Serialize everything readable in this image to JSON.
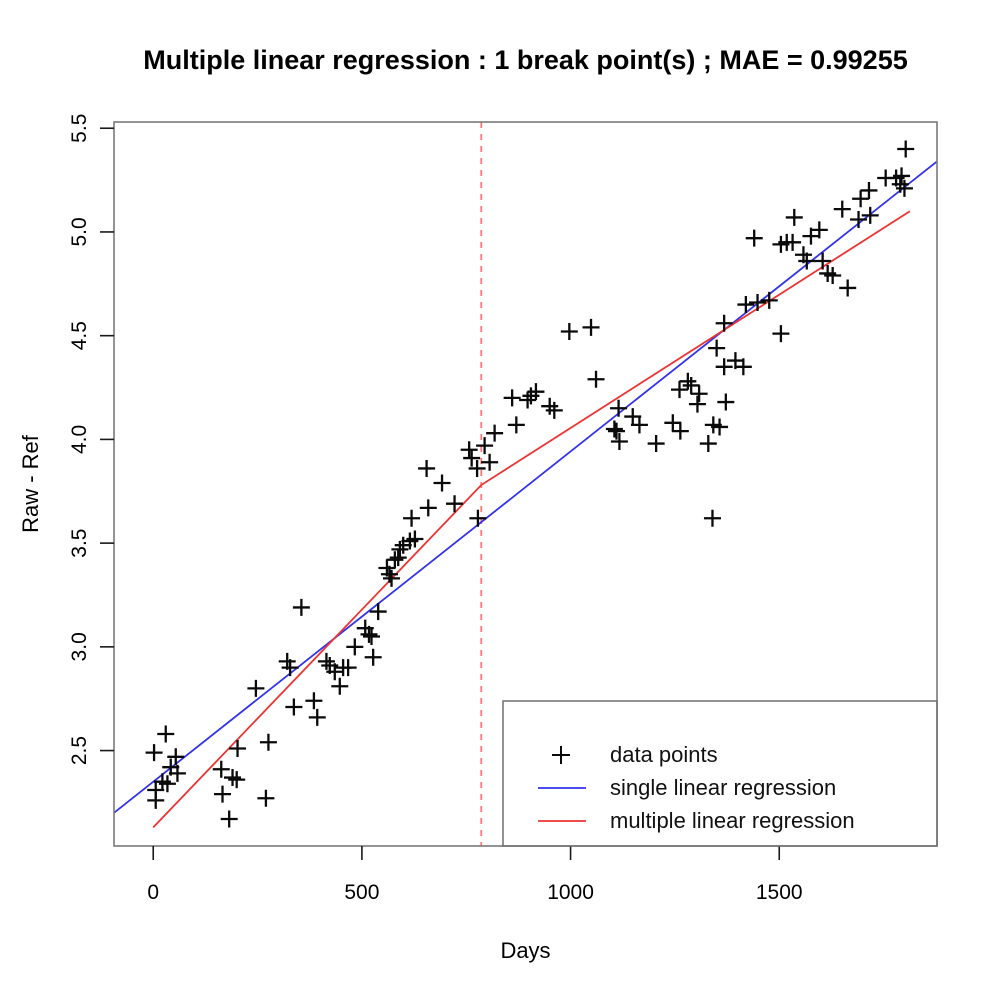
{
  "chart_data": {
    "type": "scatter",
    "title": "Multiple linear regression : 1 break point(s) ; MAE = 0.99255",
    "xlabel": "Days",
    "ylabel": "Raw - Ref",
    "xlim": [
      -94,
      1878
    ],
    "ylim": [
      2.04,
      5.53
    ],
    "x_ticks": [
      0,
      500,
      1000,
      1500
    ],
    "y_ticks": [
      "2.5",
      "3.0",
      "3.5",
      "4.0",
      "4.5",
      "5.0",
      "5.5"
    ],
    "grid": false,
    "legend_position": "bottom-right",
    "colors": {
      "points": "#0a0a0a",
      "single_regression": "#3333ee",
      "multiple_regression": "#ee3333",
      "break_line": "#f97b7b",
      "box": "#7a7a7a",
      "tick": "#1a1a1a"
    },
    "series": [
      {
        "name": "data points",
        "kind": "scatter",
        "marker": "plus",
        "color": "#0a0a0a",
        "points": [
          [
            2,
            2.49
          ],
          [
            6,
            2.31
          ],
          [
            6,
            2.26
          ],
          [
            22,
            2.35
          ],
          [
            30,
            2.58
          ],
          [
            34,
            2.34
          ],
          [
            42,
            2.42
          ],
          [
            54,
            2.47
          ],
          [
            58,
            2.39
          ],
          [
            163,
            2.41
          ],
          [
            166,
            2.29
          ],
          [
            182,
            2.17
          ],
          [
            190,
            2.37
          ],
          [
            200,
            2.36
          ],
          [
            202,
            2.51
          ],
          [
            246,
            2.8
          ],
          [
            270,
            2.27
          ],
          [
            276,
            2.54
          ],
          [
            321,
            2.93
          ],
          [
            328,
            2.9
          ],
          [
            337,
            2.71
          ],
          [
            355,
            3.19
          ],
          [
            385,
            2.74
          ],
          [
            393,
            2.66
          ],
          [
            415,
            2.93
          ],
          [
            423,
            2.91
          ],
          [
            435,
            2.88
          ],
          [
            447,
            2.81
          ],
          [
            455,
            2.9
          ],
          [
            467,
            2.9
          ],
          [
            483,
            3.0
          ],
          [
            508,
            3.09
          ],
          [
            517,
            3.06
          ],
          [
            523,
            3.05
          ],
          [
            527,
            2.95
          ],
          [
            539,
            3.17
          ],
          [
            560,
            3.38
          ],
          [
            566,
            3.35
          ],
          [
            571,
            3.33
          ],
          [
            579,
            3.42
          ],
          [
            587,
            3.43
          ],
          [
            591,
            3.47
          ],
          [
            599,
            3.49
          ],
          [
            615,
            3.51
          ],
          [
            619,
            3.62
          ],
          [
            627,
            3.52
          ],
          [
            655,
            3.86
          ],
          [
            659,
            3.67
          ],
          [
            692,
            3.79
          ],
          [
            722,
            3.69
          ],
          [
            757,
            3.95
          ],
          [
            763,
            3.91
          ],
          [
            776,
            3.86
          ],
          [
            778,
            3.62
          ],
          [
            794,
            3.97
          ],
          [
            806,
            3.89
          ],
          [
            818,
            4.03
          ],
          [
            860,
            4.2
          ],
          [
            870,
            4.07
          ],
          [
            897,
            4.19
          ],
          [
            905,
            4.21
          ],
          [
            917,
            4.23
          ],
          [
            950,
            4.16
          ],
          [
            961,
            4.14
          ],
          [
            997,
            4.52
          ],
          [
            1049,
            4.54
          ],
          [
            1061,
            4.29
          ],
          [
            1105,
            4.05
          ],
          [
            1110,
            4.04
          ],
          [
            1115,
            4.15
          ],
          [
            1117,
            3.99
          ],
          [
            1149,
            4.11
          ],
          [
            1165,
            4.07
          ],
          [
            1205,
            3.98
          ],
          [
            1245,
            4.08
          ],
          [
            1261,
            4.24
          ],
          [
            1263,
            4.04
          ],
          [
            1281,
            4.28
          ],
          [
            1289,
            4.26
          ],
          [
            1304,
            4.17
          ],
          [
            1308,
            4.22
          ],
          [
            1330,
            3.98
          ],
          [
            1340,
            3.62
          ],
          [
            1342,
            4.07
          ],
          [
            1357,
            4.06
          ],
          [
            1350,
            4.44
          ],
          [
            1368,
            4.35
          ],
          [
            1368,
            4.56
          ],
          [
            1372,
            4.18
          ],
          [
            1395,
            4.38
          ],
          [
            1414,
            4.35
          ],
          [
            1420,
            4.65
          ],
          [
            1440,
            4.97
          ],
          [
            1448,
            4.66
          ],
          [
            1476,
            4.67
          ],
          [
            1504,
            4.51
          ],
          [
            1504,
            4.94
          ],
          [
            1518,
            4.95
          ],
          [
            1532,
            4.95
          ],
          [
            1536,
            5.07
          ],
          [
            1558,
            4.89
          ],
          [
            1566,
            4.86
          ],
          [
            1576,
            4.98
          ],
          [
            1596,
            5.01
          ],
          [
            1604,
            4.86
          ],
          [
            1616,
            4.8
          ],
          [
            1628,
            4.79
          ],
          [
            1651,
            5.11
          ],
          [
            1664,
            4.73
          ],
          [
            1690,
            5.06
          ],
          [
            1695,
            5.16
          ],
          [
            1715,
            5.2
          ],
          [
            1718,
            5.08
          ],
          [
            1755,
            5.26
          ],
          [
            1780,
            5.26
          ],
          [
            1790,
            5.23
          ],
          [
            1793,
            5.27
          ],
          [
            1800,
            5.21
          ],
          [
            1803,
            5.4
          ]
        ]
      },
      {
        "name": "single linear regression",
        "kind": "line",
        "color": "#3333ee",
        "points": [
          [
            -94,
            2.2
          ],
          [
            1878,
            5.34
          ]
        ]
      },
      {
        "name": "multiple linear regression",
        "kind": "line",
        "color": "#ee3333",
        "points": [
          [
            0,
            2.13
          ],
          [
            786,
            3.78
          ],
          [
            1813,
            5.1
          ]
        ]
      }
    ],
    "annotations": [
      {
        "type": "vline",
        "x": 786,
        "style": "dashed",
        "color": "#f97b7b"
      }
    ]
  },
  "legend": {
    "entries": [
      {
        "symbol": "plus",
        "color": "#0a0a0a",
        "label": "data points"
      },
      {
        "symbol": "line",
        "color": "#3333ee",
        "label": "single linear regression"
      },
      {
        "symbol": "line",
        "color": "#ee3333",
        "label": "multiple linear regression"
      }
    ]
  }
}
